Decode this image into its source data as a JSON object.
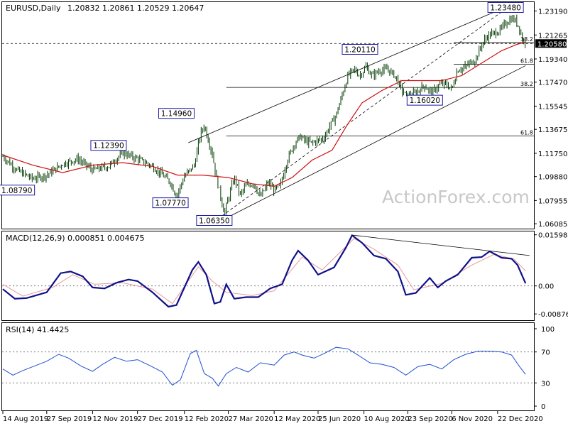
{
  "chart_data": [
    {
      "type": "line",
      "title": "EURUSD,Daily",
      "ohlc": "1.20832 1.20861 1.20529 1.20647",
      "watermark": "ActionForex.com",
      "ylim": [
        1.0575,
        1.2385
      ],
      "yticks": [
        "1.23190",
        "1.21265",
        "1.19340",
        "1.17470",
        "1.15545",
        "1.13675",
        "1.11750",
        "1.09880",
        "1.07955",
        "1.06085"
      ],
      "current_price": "1.20580",
      "xticks": [
        {
          "label": "14 Aug 2019",
          "day": 0
        },
        {
          "label": "27 Sep 2019",
          "day": 44
        },
        {
          "label": "12 Nov 2019",
          "day": 90
        },
        {
          "label": "27 Dec 2019",
          "day": 135
        },
        {
          "label": "12 Feb 2020",
          "day": 182
        },
        {
          "label": "27 Mar 2020",
          "day": 226
        },
        {
          "label": "12 May 2020",
          "day": 272
        },
        {
          "label": "25 Jun 2020",
          "day": 316
        },
        {
          "label": "10 Aug 2020",
          "day": 362
        },
        {
          "label": "23 Sep 2020",
          "day": 406
        },
        {
          "label": "6 Nov 2020",
          "day": 450
        },
        {
          "label": "22 Dec 2020",
          "day": 496
        }
      ],
      "price_points": [
        [
          0,
          1.115
        ],
        [
          14,
          1.104
        ],
        [
          30,
          1.097
        ],
        [
          44,
          1.1
        ],
        [
          60,
          1.109
        ],
        [
          75,
          1.113
        ],
        [
          90,
          1.104
        ],
        [
          106,
          1.107
        ],
        [
          120,
          1.118
        ],
        [
          135,
          1.113
        ],
        [
          150,
          1.107
        ],
        [
          160,
          1.1
        ],
        [
          168,
          1.094
        ],
        [
          174,
          1.083
        ],
        [
          182,
          1.099
        ],
        [
          192,
          1.108
        ],
        [
          198,
          1.133
        ],
        [
          202,
          1.14
        ],
        [
          206,
          1.128
        ],
        [
          210,
          1.117
        ],
        [
          214,
          1.098
        ],
        [
          218,
          1.084
        ],
        [
          222,
          1.069
        ],
        [
          226,
          1.081
        ],
        [
          232,
          1.098
        ],
        [
          238,
          1.084
        ],
        [
          244,
          1.092
        ],
        [
          252,
          1.093
        ],
        [
          258,
          1.082
        ],
        [
          266,
          1.094
        ],
        [
          272,
          1.088
        ],
        [
          278,
          1.091
        ],
        [
          285,
          1.112
        ],
        [
          292,
          1.125
        ],
        [
          298,
          1.131
        ],
        [
          304,
          1.127
        ],
        [
          310,
          1.126
        ],
        [
          316,
          1.128
        ],
        [
          322,
          1.13
        ],
        [
          328,
          1.14
        ],
        [
          334,
          1.148
        ],
        [
          340,
          1.164
        ],
        [
          346,
          1.18
        ],
        [
          352,
          1.185
        ],
        [
          358,
          1.18
        ],
        [
          364,
          1.187
        ],
        [
          370,
          1.18
        ],
        [
          378,
          1.184
        ],
        [
          386,
          1.185
        ],
        [
          394,
          1.179
        ],
        [
          400,
          1.168
        ],
        [
          406,
          1.163
        ],
        [
          414,
          1.166
        ],
        [
          422,
          1.172
        ],
        [
          430,
          1.166
        ],
        [
          438,
          1.173
        ],
        [
          444,
          1.173
        ],
        [
          450,
          1.169
        ],
        [
          456,
          1.185
        ],
        [
          462,
          1.186
        ],
        [
          468,
          1.19
        ],
        [
          474,
          1.193
        ],
        [
          480,
          1.205
        ],
        [
          486,
          1.212
        ],
        [
          492,
          1.214
        ],
        [
          498,
          1.216
        ],
        [
          504,
          1.222
        ],
        [
          510,
          1.226
        ],
        [
          514,
          1.224
        ],
        [
          518,
          1.218
        ],
        [
          521,
          1.208
        ],
        [
          524,
          1.206
        ]
      ],
      "ma_points": [
        [
          0,
          1.116
        ],
        [
          30,
          1.108
        ],
        [
          60,
          1.102
        ],
        [
          90,
          1.108
        ],
        [
          120,
          1.11
        ],
        [
          150,
          1.107
        ],
        [
          175,
          1.1
        ],
        [
          200,
          1.1
        ],
        [
          226,
          1.098
        ],
        [
          250,
          1.093
        ],
        [
          272,
          1.091
        ],
        [
          290,
          1.098
        ],
        [
          310,
          1.112
        ],
        [
          330,
          1.12
        ],
        [
          345,
          1.14
        ],
        [
          360,
          1.158
        ],
        [
          380,
          1.168
        ],
        [
          400,
          1.176
        ],
        [
          420,
          1.176
        ],
        [
          440,
          1.176
        ],
        [
          460,
          1.18
        ],
        [
          480,
          1.19
        ],
        [
          500,
          1.2
        ],
        [
          515,
          1.205
        ],
        [
          524,
          1.207
        ]
      ],
      "channel_lines": [
        {
          "from": [
            186,
            1.126
          ],
          "to": [
            504,
            1.235
          ]
        },
        {
          "from": [
            218,
            1.063
          ],
          "to": [
            524,
            1.188
          ]
        },
        {
          "from": [
            216,
            1.065
          ],
          "to": [
            503,
            1.233
          ]
        }
      ],
      "fib_lines": [
        {
          "label": "38.2",
          "price": 1.2065,
          "start_day": 452
        },
        {
          "label": "61.8",
          "price": 1.1891,
          "start_day": 452
        },
        {
          "label": "38.2",
          "price": 1.1705,
          "start_day": 224
        },
        {
          "label": "61.8",
          "price": 1.1315,
          "start_day": 224
        }
      ],
      "annotations": [
        {
          "label": "1.08790",
          "day": 14,
          "price": 1.0879
        },
        {
          "label": "1.12390",
          "day": 106,
          "price": 1.1239
        },
        {
          "label": "1.14960",
          "day": 174,
          "price": 1.1496
        },
        {
          "label": "1.07770",
          "day": 168,
          "price": 1.0777
        },
        {
          "label": "1.06350",
          "day": 212,
          "price": 1.0635
        },
        {
          "label": "1.20110",
          "day": 358,
          "price": 1.2011
        },
        {
          "label": "1.16020",
          "day": 423,
          "price": 1.1602
        },
        {
          "label": "1.23480",
          "day": 504,
          "price": 1.2348
        }
      ]
    },
    {
      "type": "line",
      "title": "MACD(12,26,9) 0.000851 0.004675",
      "ylim": [
        -0.0105,
        0.0168
      ],
      "yticks": [
        "0.015983",
        "0.00",
        "-0.008762"
      ],
      "macd_points": [
        [
          0,
          -0.001
        ],
        [
          12,
          -0.004
        ],
        [
          24,
          -0.0038
        ],
        [
          44,
          -0.002
        ],
        [
          58,
          0.004
        ],
        [
          68,
          0.0045
        ],
        [
          80,
          0.003
        ],
        [
          90,
          -0.0005
        ],
        [
          102,
          -0.0008
        ],
        [
          114,
          0.001
        ],
        [
          126,
          0.002
        ],
        [
          135,
          0.0015
        ],
        [
          150,
          -0.002
        ],
        [
          166,
          -0.0065
        ],
        [
          174,
          -0.006
        ],
        [
          190,
          0.005
        ],
        [
          196,
          0.0075
        ],
        [
          204,
          0.0035
        ],
        [
          212,
          -0.0055
        ],
        [
          218,
          -0.005
        ],
        [
          224,
          0.0005
        ],
        [
          232,
          -0.004
        ],
        [
          244,
          -0.0035
        ],
        [
          256,
          -0.0035
        ],
        [
          268,
          -0.0008
        ],
        [
          280,
          0.0005
        ],
        [
          290,
          0.008
        ],
        [
          296,
          0.011
        ],
        [
          306,
          0.008
        ],
        [
          316,
          0.0035
        ],
        [
          332,
          0.0058
        ],
        [
          344,
          0.012
        ],
        [
          350,
          0.0158
        ],
        [
          360,
          0.0135
        ],
        [
          372,
          0.0095
        ],
        [
          384,
          0.0085
        ],
        [
          396,
          0.0045
        ],
        [
          404,
          -0.0028
        ],
        [
          414,
          -0.0022
        ],
        [
          428,
          0.0025
        ],
        [
          436,
          -0.0005
        ],
        [
          444,
          0.0015
        ],
        [
          456,
          0.0035
        ],
        [
          470,
          0.0088
        ],
        [
          480,
          0.009
        ],
        [
          488,
          0.0108
        ],
        [
          500,
          0.0088
        ],
        [
          510,
          0.0085
        ],
        [
          516,
          0.0065
        ],
        [
          524,
          0.0008
        ]
      ],
      "signal_points": [
        [
          0,
          0.0005
        ],
        [
          20,
          -0.0032
        ],
        [
          50,
          -0.0005
        ],
        [
          70,
          0.0035
        ],
        [
          92,
          0.0005
        ],
        [
          120,
          0.001
        ],
        [
          150,
          -0.001
        ],
        [
          170,
          -0.0055
        ],
        [
          196,
          0.006
        ],
        [
          210,
          0.0015
        ],
        [
          224,
          -0.002
        ],
        [
          250,
          -0.003
        ],
        [
          272,
          -0.0015
        ],
        [
          300,
          0.009
        ],
        [
          320,
          0.005
        ],
        [
          352,
          0.0148
        ],
        [
          372,
          0.0115
        ],
        [
          396,
          0.0065
        ],
        [
          412,
          -0.0012
        ],
        [
          440,
          0.0008
        ],
        [
          470,
          0.0065
        ],
        [
          492,
          0.0098
        ],
        [
          512,
          0.0085
        ],
        [
          524,
          0.0047
        ]
      ],
      "trendline": {
        "from": [
          350,
          0.0159
        ],
        "to": [
          528,
          0.0095
        ]
      }
    },
    {
      "type": "line",
      "title": "RSI(14) 41.4425",
      "ylim": [
        0,
        100
      ],
      "yticks": [
        "100",
        "70",
        "30",
        "0"
      ],
      "rsi_points": [
        [
          0,
          48
        ],
        [
          10,
          40
        ],
        [
          20,
          46
        ],
        [
          32,
          52
        ],
        [
          44,
          58
        ],
        [
          56,
          67
        ],
        [
          66,
          62
        ],
        [
          78,
          52
        ],
        [
          90,
          45
        ],
        [
          100,
          54
        ],
        [
          112,
          63
        ],
        [
          124,
          58
        ],
        [
          135,
          60
        ],
        [
          148,
          52
        ],
        [
          160,
          44
        ],
        [
          170,
          27
        ],
        [
          178,
          34
        ],
        [
          188,
          68
        ],
        [
          194,
          72
        ],
        [
          202,
          42
        ],
        [
          210,
          36
        ],
        [
          216,
          26
        ],
        [
          224,
          42
        ],
        [
          234,
          50
        ],
        [
          246,
          44
        ],
        [
          258,
          56
        ],
        [
          272,
          53
        ],
        [
          282,
          66
        ],
        [
          292,
          70
        ],
        [
          300,
          66
        ],
        [
          312,
          62
        ],
        [
          322,
          68
        ],
        [
          334,
          76
        ],
        [
          346,
          74
        ],
        [
          356,
          66
        ],
        [
          368,
          56
        ],
        [
          380,
          54
        ],
        [
          392,
          50
        ],
        [
          404,
          40
        ],
        [
          416,
          51
        ],
        [
          428,
          54
        ],
        [
          440,
          48
        ],
        [
          452,
          60
        ],
        [
          464,
          67
        ],
        [
          476,
          71
        ],
        [
          488,
          71
        ],
        [
          500,
          70
        ],
        [
          510,
          66
        ],
        [
          518,
          51
        ],
        [
          524,
          41
        ]
      ]
    }
  ]
}
